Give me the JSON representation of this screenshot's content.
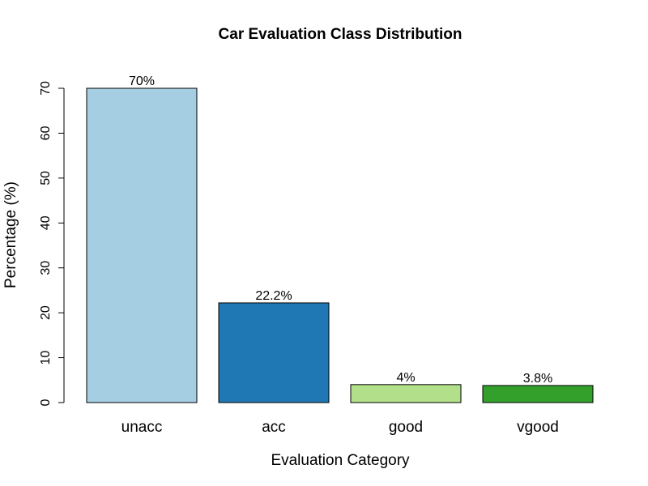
{
  "chart_data": {
    "type": "bar",
    "title": "Car Evaluation Class Distribution",
    "xlabel": "Evaluation Category",
    "ylabel": "Percentage (%)",
    "categories": [
      "unacc",
      "acc",
      "good",
      "vgood"
    ],
    "values": [
      70,
      22.2,
      4,
      3.8
    ],
    "data_labels": [
      "70%",
      "22.2%",
      "4%",
      "3.8%"
    ],
    "colors": [
      "#A6CEE3",
      "#1F78B4",
      "#B2DF8A",
      "#33A02C"
    ],
    "ylim": [
      0,
      70
    ],
    "yticks": [
      0,
      10,
      20,
      30,
      40,
      50,
      60,
      70
    ],
    "grid": false,
    "legend": "none"
  }
}
